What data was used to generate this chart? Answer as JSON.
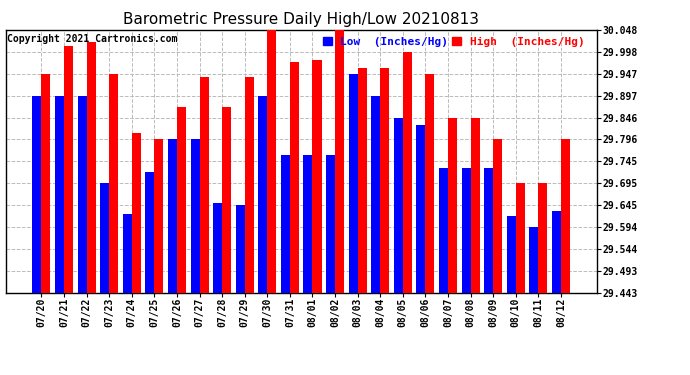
{
  "title": "Barometric Pressure Daily High/Low 20210813",
  "copyright": "Copyright 2021 Cartronics.com",
  "legend_low": "Low  (Inches/Hg)",
  "legend_high": "High  (Inches/Hg)",
  "background_color": "#ffffff",
  "grid_color": "#bbbbbb",
  "bar_width": 0.4,
  "ylim_min": 29.443,
  "ylim_max": 30.048,
  "yticks": [
    29.443,
    29.493,
    29.544,
    29.594,
    29.645,
    29.695,
    29.745,
    29.796,
    29.846,
    29.897,
    29.947,
    29.998,
    30.048
  ],
  "categories": [
    "07/20",
    "07/21",
    "07/22",
    "07/23",
    "07/24",
    "07/25",
    "07/26",
    "07/27",
    "07/28",
    "07/29",
    "07/30",
    "07/31",
    "08/01",
    "08/02",
    "08/03",
    "08/04",
    "08/05",
    "08/06",
    "08/07",
    "08/08",
    "08/09",
    "08/10",
    "08/11",
    "08/12"
  ],
  "high_values": [
    29.947,
    30.01,
    30.02,
    29.947,
    29.81,
    29.796,
    29.87,
    29.94,
    29.87,
    29.94,
    30.048,
    29.975,
    29.98,
    30.048,
    29.96,
    29.96,
    29.998,
    29.947,
    29.846,
    29.846,
    29.796,
    29.695,
    29.695,
    29.796
  ],
  "low_values": [
    29.897,
    29.897,
    29.897,
    29.695,
    29.625,
    29.72,
    29.796,
    29.796,
    29.65,
    29.645,
    29.897,
    29.76,
    29.76,
    29.76,
    29.947,
    29.897,
    29.846,
    29.83,
    29.73,
    29.73,
    29.73,
    29.62,
    29.594,
    29.63
  ],
  "title_fontsize": 11,
  "tick_fontsize": 7,
  "copyright_fontsize": 7,
  "legend_fontsize": 8
}
